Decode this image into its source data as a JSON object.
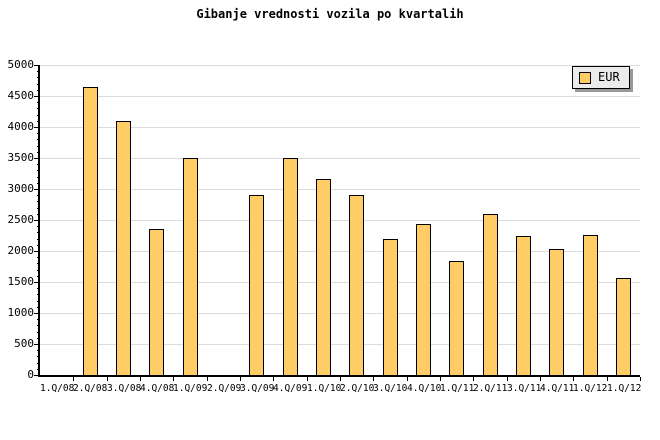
{
  "chart_data": {
    "type": "bar",
    "title": "Gibanje vrednosti vozila po kvartalih",
    "xlabel": "",
    "ylabel": "",
    "categories": [
      "1.Q/08",
      "2.Q/08",
      "3.Q/08",
      "4.Q/08",
      "1.Q/09",
      "2.Q/09",
      "3.Q/09",
      "4.Q/09",
      "1.Q/10",
      "2.Q/10",
      "3.Q/10",
      "4.Q/10",
      "1.Q/11",
      "2.Q/11",
      "3.Q/11",
      "4.Q/11",
      "1.Q/12",
      "1.Q/12"
    ],
    "values": [
      null,
      4640,
      4100,
      2360,
      3500,
      null,
      2900,
      3500,
      3160,
      2900,
      2190,
      2430,
      1840,
      2590,
      2240,
      2040,
      2250,
      1560
    ],
    "ylim": [
      0,
      5000
    ],
    "yticks": [
      0,
      500,
      1000,
      1500,
      2000,
      2500,
      3000,
      3500,
      4000,
      4500,
      5000
    ],
    "ytick_interval": 500,
    "yminor_interval": 100,
    "grid": "horizontal-major",
    "legend": {
      "label": "EUR",
      "position": "top-right"
    },
    "colors": {
      "bar_fill": "#ffcc66",
      "bar_border": "#000000",
      "gridline": "#dcdcdc",
      "axis": "#000000",
      "background": "#ffffff",
      "legend_background": "#ebebeb",
      "legend_shadow": "#999999",
      "text": "#000000"
    }
  }
}
